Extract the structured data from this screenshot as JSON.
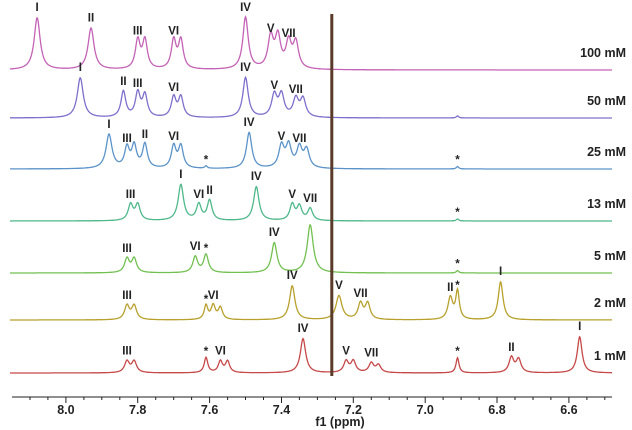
{
  "chart_data": {
    "type": "line",
    "title": "",
    "xlabel": "f1 (ppm)",
    "ylabel": "",
    "xlim": [
      8.15,
      6.48
    ],
    "x_reversed": true,
    "x_ticks": [
      "8.0",
      "7.8",
      "7.6",
      "7.4",
      "7.2",
      "7.0",
      "6.8",
      "6.6"
    ],
    "grid": false,
    "solvent_peak_ppm": 7.26,
    "series": [
      {
        "name": "100 mM",
        "color": "#c462b6",
        "peaks": [
          {
            "label": "I",
            "ppm": 8.08,
            "height": 1.0,
            "width": 0.01
          },
          {
            "label": "II",
            "ppm": 7.93,
            "height": 0.8,
            "width": 0.01
          },
          {
            "label": "III",
            "ppm": 7.8,
            "height": 0.55,
            "width": 0.008
          },
          {
            "label": "",
            "ppm": 7.78,
            "height": 0.55,
            "width": 0.008
          },
          {
            "label": "VI",
            "ppm": 7.7,
            "height": 0.55,
            "width": 0.008
          },
          {
            "label": "",
            "ppm": 7.68,
            "height": 0.55,
            "width": 0.008
          },
          {
            "label": "IV",
            "ppm": 7.5,
            "height": 1.0,
            "width": 0.009
          },
          {
            "label": "V",
            "ppm": 7.43,
            "height": 0.6,
            "width": 0.009
          },
          {
            "label": "",
            "ppm": 7.41,
            "height": 0.6,
            "width": 0.009
          },
          {
            "label": "VII",
            "ppm": 7.38,
            "height": 0.5,
            "width": 0.009
          },
          {
            "label": "",
            "ppm": 7.36,
            "height": 0.5,
            "width": 0.009
          }
        ]
      },
      {
        "name": "50 mM",
        "color": "#7f6fcc",
        "peaks": [
          {
            "label": "I",
            "ppm": 7.96,
            "height": 1.0,
            "width": 0.01
          },
          {
            "label": "II",
            "ppm": 7.84,
            "height": 0.65,
            "width": 0.008
          },
          {
            "label": "III",
            "ppm": 7.8,
            "height": 0.6,
            "width": 0.008
          },
          {
            "label": "",
            "ppm": 7.78,
            "height": 0.55,
            "width": 0.008
          },
          {
            "label": "VI",
            "ppm": 7.7,
            "height": 0.5,
            "width": 0.008
          },
          {
            "label": "",
            "ppm": 7.68,
            "height": 0.5,
            "width": 0.008
          },
          {
            "label": "IV",
            "ppm": 7.5,
            "height": 1.0,
            "width": 0.009
          },
          {
            "label": "V",
            "ppm": 7.42,
            "height": 0.55,
            "width": 0.009
          },
          {
            "label": "",
            "ppm": 7.4,
            "height": 0.55,
            "width": 0.009
          },
          {
            "label": "VII",
            "ppm": 7.36,
            "height": 0.45,
            "width": 0.009
          },
          {
            "label": "",
            "ppm": 7.34,
            "height": 0.45,
            "width": 0.009
          },
          {
            "label": "",
            "ppm": 6.91,
            "height": 0.05,
            "width": 0.004
          }
        ]
      },
      {
        "name": "25 mM",
        "color": "#5b93c9",
        "peaks": [
          {
            "label": "I",
            "ppm": 7.88,
            "height": 0.85,
            "width": 0.01
          },
          {
            "label": "III",
            "ppm": 7.83,
            "height": 0.5,
            "width": 0.008
          },
          {
            "label": "",
            "ppm": 7.81,
            "height": 0.55,
            "width": 0.008
          },
          {
            "label": "II",
            "ppm": 7.78,
            "height": 0.6,
            "width": 0.008
          },
          {
            "label": "VI",
            "ppm": 7.7,
            "height": 0.55,
            "width": 0.008
          },
          {
            "label": "",
            "ppm": 7.68,
            "height": 0.55,
            "width": 0.008
          },
          {
            "label": "*",
            "ppm": 7.61,
            "height": 0.06,
            "width": 0.004
          },
          {
            "label": "IV",
            "ppm": 7.49,
            "height": 0.9,
            "width": 0.009
          },
          {
            "label": "V",
            "ppm": 7.4,
            "height": 0.55,
            "width": 0.009
          },
          {
            "label": "",
            "ppm": 7.38,
            "height": 0.55,
            "width": 0.009
          },
          {
            "label": "VII",
            "ppm": 7.35,
            "height": 0.5,
            "width": 0.009
          },
          {
            "label": "",
            "ppm": 7.33,
            "height": 0.45,
            "width": 0.009
          },
          {
            "label": "*",
            "ppm": 6.91,
            "height": 0.06,
            "width": 0.004
          }
        ]
      },
      {
        "name": "13 mM",
        "color": "#4fb88a",
        "peaks": [
          {
            "label": "III",
            "ppm": 7.82,
            "height": 0.4,
            "width": 0.008
          },
          {
            "label": "",
            "ppm": 7.8,
            "height": 0.4,
            "width": 0.008
          },
          {
            "label": "I",
            "ppm": 7.68,
            "height": 0.9,
            "width": 0.009
          },
          {
            "label": "VI",
            "ppm": 7.63,
            "height": 0.4,
            "width": 0.008
          },
          {
            "label": "II",
            "ppm": 7.6,
            "height": 0.5,
            "width": 0.008
          },
          {
            "label": "IV",
            "ppm": 7.47,
            "height": 0.85,
            "width": 0.009
          },
          {
            "label": "V",
            "ppm": 7.37,
            "height": 0.4,
            "width": 0.008
          },
          {
            "label": "",
            "ppm": 7.35,
            "height": 0.35,
            "width": 0.008
          },
          {
            "label": "VII",
            "ppm": 7.32,
            "height": 0.3,
            "width": 0.008
          },
          {
            "label": "*",
            "ppm": 6.91,
            "height": 0.05,
            "width": 0.004
          }
        ]
      },
      {
        "name": "5 mM",
        "color": "#72c050",
        "peaks": [
          {
            "label": "III",
            "ppm": 7.83,
            "height": 0.35,
            "width": 0.008
          },
          {
            "label": "",
            "ppm": 7.81,
            "height": 0.35,
            "width": 0.008
          },
          {
            "label": "VI",
            "ppm": 7.64,
            "height": 0.4,
            "width": 0.008
          },
          {
            "label": "*",
            "ppm": 7.61,
            "height": 0.45,
            "width": 0.008
          },
          {
            "label": "IV",
            "ppm": 7.42,
            "height": 0.75,
            "width": 0.009
          },
          {
            "label": "",
            "ppm": 7.32,
            "height": 1.2,
            "width": 0.01
          },
          {
            "label": "*",
            "ppm": 6.91,
            "height": 0.06,
            "width": 0.004
          }
        ]
      },
      {
        "name": "2 mM",
        "color": "#b8a02c",
        "peaks": [
          {
            "label": "III",
            "ppm": 7.83,
            "height": 0.35,
            "width": 0.008
          },
          {
            "label": "",
            "ppm": 7.81,
            "height": 0.35,
            "width": 0.008
          },
          {
            "label": "*",
            "ppm": 7.61,
            "height": 0.35,
            "width": 0.006
          },
          {
            "label": "VI",
            "ppm": 7.59,
            "height": 0.35,
            "width": 0.007
          },
          {
            "label": "",
            "ppm": 7.57,
            "height": 0.3,
            "width": 0.007
          },
          {
            "label": "IV",
            "ppm": 7.37,
            "height": 0.85,
            "width": 0.009
          },
          {
            "label": "V",
            "ppm": 7.24,
            "height": 0.6,
            "width": 0.01
          },
          {
            "label": "VII",
            "ppm": 7.18,
            "height": 0.4,
            "width": 0.008
          },
          {
            "label": "",
            "ppm": 7.16,
            "height": 0.4,
            "width": 0.008
          },
          {
            "label": "II",
            "ppm": 6.93,
            "height": 0.55,
            "width": 0.008
          },
          {
            "label": "*",
            "ppm": 6.91,
            "height": 0.7,
            "width": 0.006
          },
          {
            "label": "I",
            "ppm": 6.79,
            "height": 0.95,
            "width": 0.008
          }
        ]
      },
      {
        "name": "1 mM",
        "color": "#c64848",
        "peaks": [
          {
            "label": "III",
            "ppm": 7.83,
            "height": 0.3,
            "width": 0.008
          },
          {
            "label": "",
            "ppm": 7.81,
            "height": 0.3,
            "width": 0.008
          },
          {
            "label": "*",
            "ppm": 7.61,
            "height": 0.4,
            "width": 0.006
          },
          {
            "label": "VI",
            "ppm": 7.57,
            "height": 0.3,
            "width": 0.007
          },
          {
            "label": "",
            "ppm": 7.55,
            "height": 0.3,
            "width": 0.007
          },
          {
            "label": "IV",
            "ppm": 7.34,
            "height": 0.9,
            "width": 0.009
          },
          {
            "label": "V",
            "ppm": 7.22,
            "height": 0.3,
            "width": 0.008
          },
          {
            "label": "",
            "ppm": 7.2,
            "height": 0.3,
            "width": 0.008
          },
          {
            "label": "VII",
            "ppm": 7.15,
            "height": 0.25,
            "width": 0.008
          },
          {
            "label": "",
            "ppm": 7.13,
            "height": 0.2,
            "width": 0.008
          },
          {
            "label": "*",
            "ppm": 6.91,
            "height": 0.4,
            "width": 0.005
          },
          {
            "label": "II",
            "ppm": 6.76,
            "height": 0.4,
            "width": 0.008
          },
          {
            "label": "",
            "ppm": 6.74,
            "height": 0.35,
            "width": 0.008
          },
          {
            "label": "I",
            "ppm": 6.57,
            "height": 0.95,
            "width": 0.008
          }
        ]
      }
    ]
  }
}
